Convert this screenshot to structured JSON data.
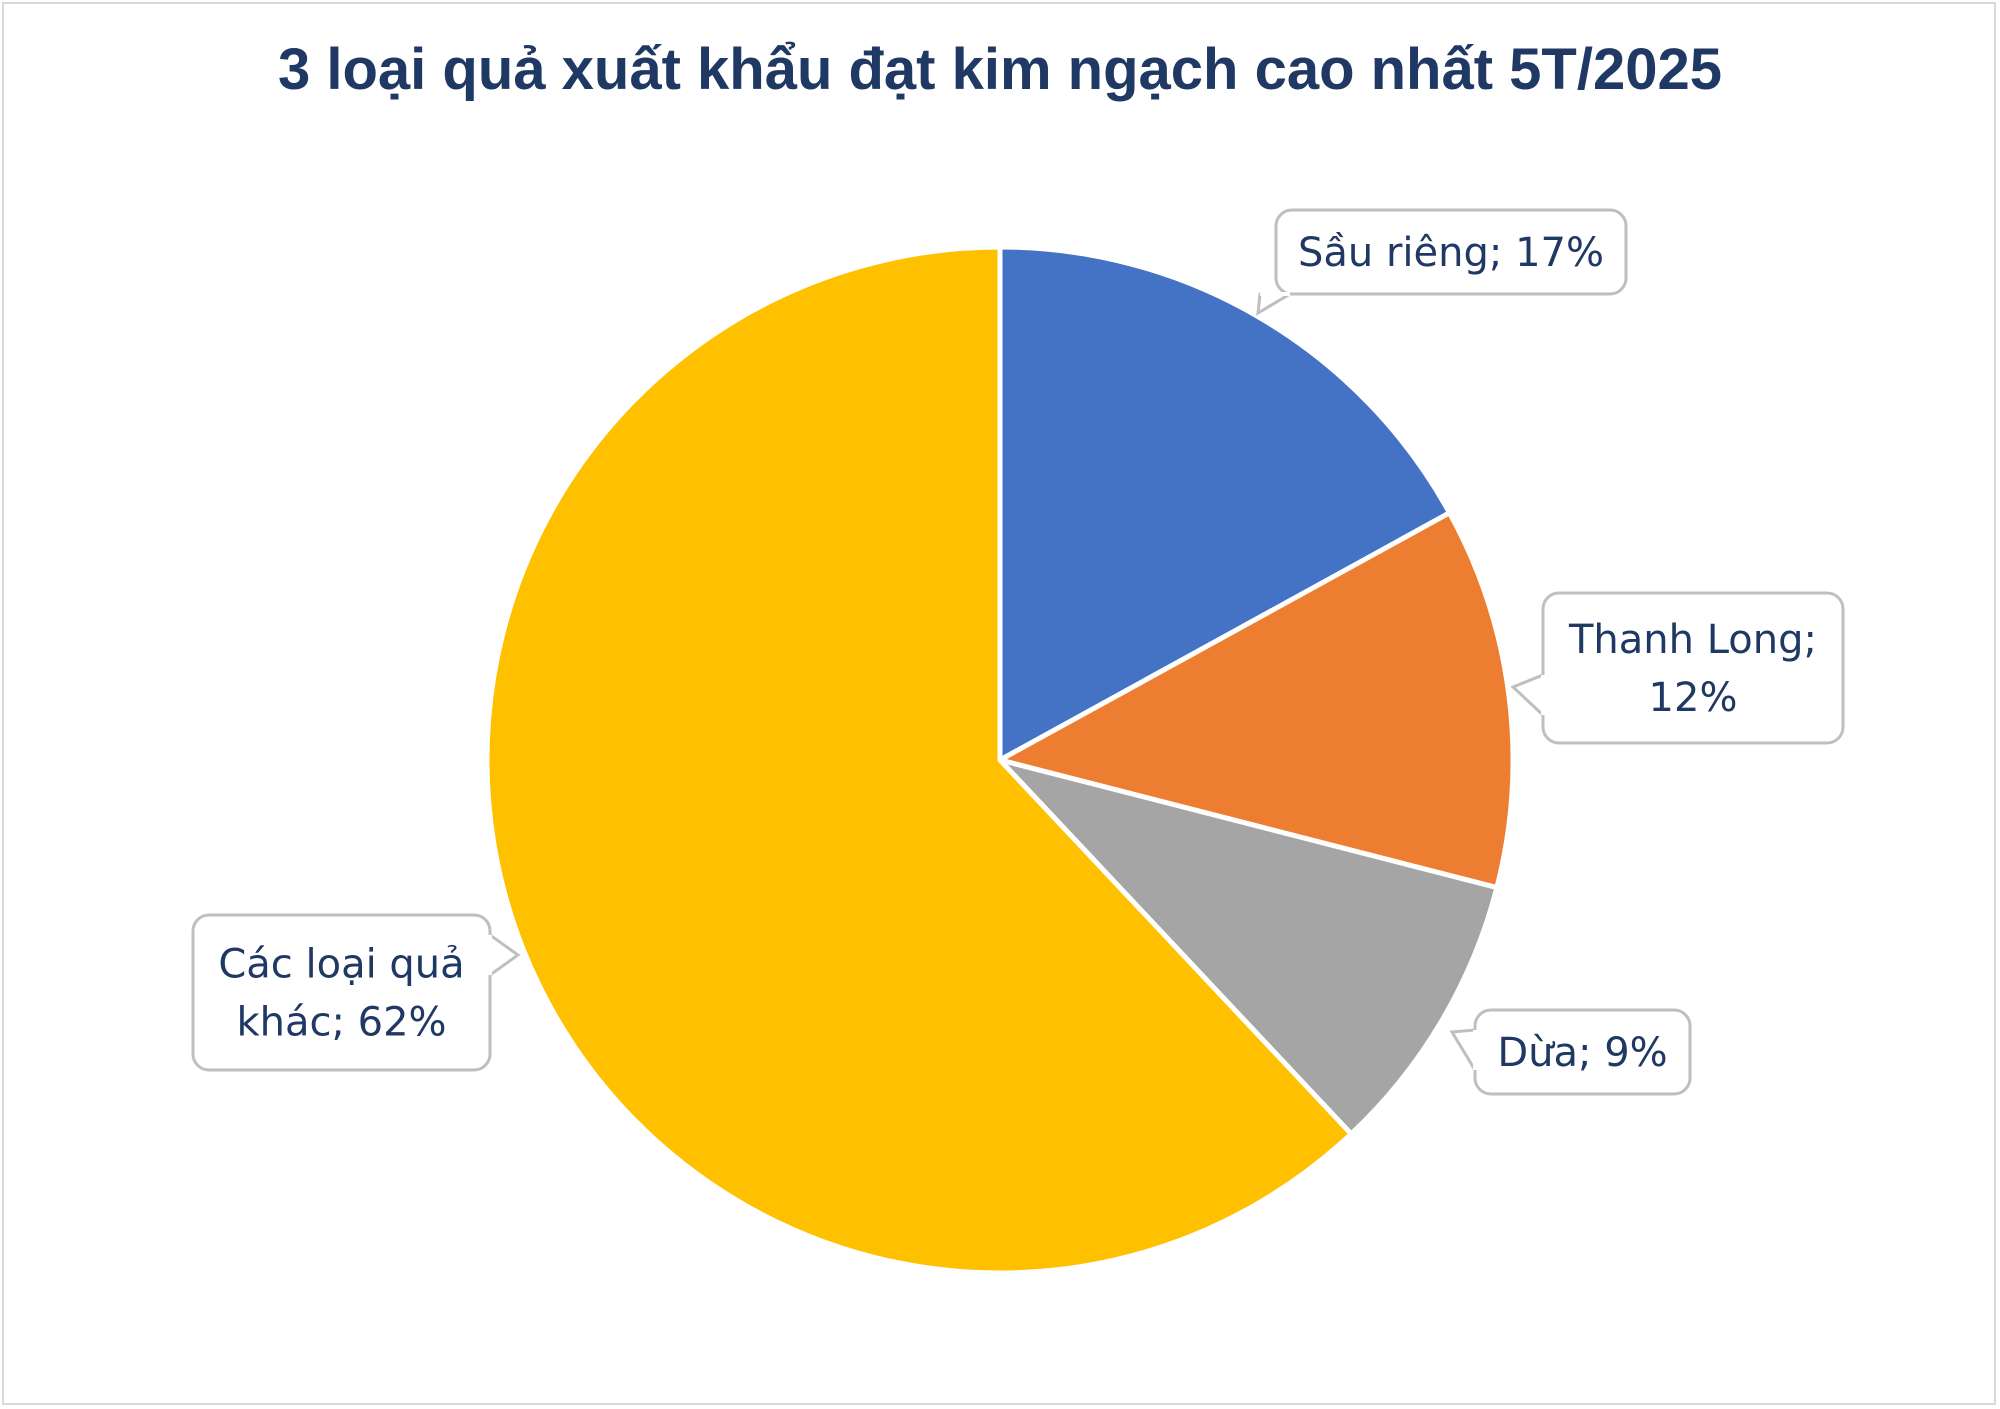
{
  "chart_data": {
    "type": "pie",
    "title": "3 loại quả xuất khẩu đạt kim ngạch cao nhất 5T/2025",
    "slices": [
      {
        "name": "Sầu riêng",
        "value": 17,
        "color": "#4472c4",
        "label_lines": [
          "Sầu riêng; 17%"
        ]
      },
      {
        "name": "Thanh Long",
        "value": 12,
        "color": "#ed7d31",
        "label_lines": [
          "Thanh Long;",
          "12%"
        ]
      },
      {
        "name": "Dừa",
        "value": 9,
        "color": "#a5a5a5",
        "label_lines": [
          "Dừa; 9%"
        ]
      },
      {
        "name": "Các loại quả khác",
        "value": 62,
        "color": "#ffc000",
        "label_lines": [
          "Các loại quả",
          "khác; 62%"
        ]
      }
    ],
    "unit": "%",
    "start": "12 o'clock, clockwise"
  }
}
